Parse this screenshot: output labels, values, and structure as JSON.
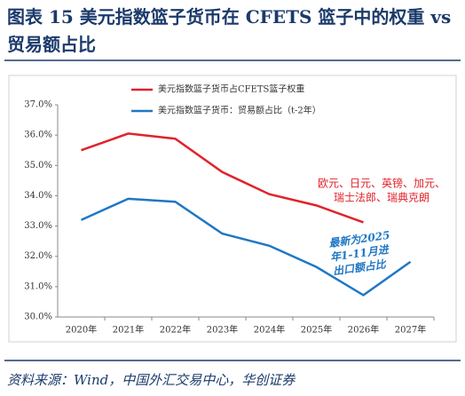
{
  "chart_data": {
    "type": "line",
    "title": "图表 15   美元指数篮子货币在 CFETS 篮子中的权重 vs 贸易额占比",
    "source": "资料来源：Wind，中国外汇交易中心，华创证券",
    "categories": [
      "2020年",
      "2021年",
      "2022年",
      "2023年",
      "2024年",
      "2025年",
      "2026年",
      "2027年"
    ],
    "series": [
      {
        "name": "美元指数篮子货币占CFETS篮子权重",
        "color": "#e0232b",
        "values": [
          35.5,
          36.05,
          35.88,
          34.78,
          34.05,
          33.68,
          33.12,
          null
        ]
      },
      {
        "name": "美元指数篮子货币：贸易额占比（t-2年）",
        "color": "#1f77c4",
        "values": [
          33.2,
          33.9,
          33.8,
          32.75,
          32.35,
          31.65,
          30.72,
          31.82
        ]
      }
    ],
    "ylim": [
      30,
      37
    ],
    "yticks": [
      {
        "value": 30,
        "label": "30.0%"
      },
      {
        "value": 31,
        "label": "31.0%"
      },
      {
        "value": 32,
        "label": "32.0%"
      },
      {
        "value": 33,
        "label": "33.0%"
      },
      {
        "value": 34,
        "label": "34.0%"
      },
      {
        "value": 35,
        "label": "35.0%"
      },
      {
        "value": 36,
        "label": "36.0%"
      },
      {
        "value": 37,
        "label": "37.0%"
      }
    ],
    "annotations": [
      {
        "lines": [
          "欧元、日元、英镑、加元、",
          "瑞士法郎、瑞典克朗"
        ],
        "color": "#e0232b"
      },
      {
        "lines": [
          "最新为2025",
          "年1-11月进",
          "出口额占比"
        ],
        "color": "#1f77c4"
      }
    ]
  }
}
